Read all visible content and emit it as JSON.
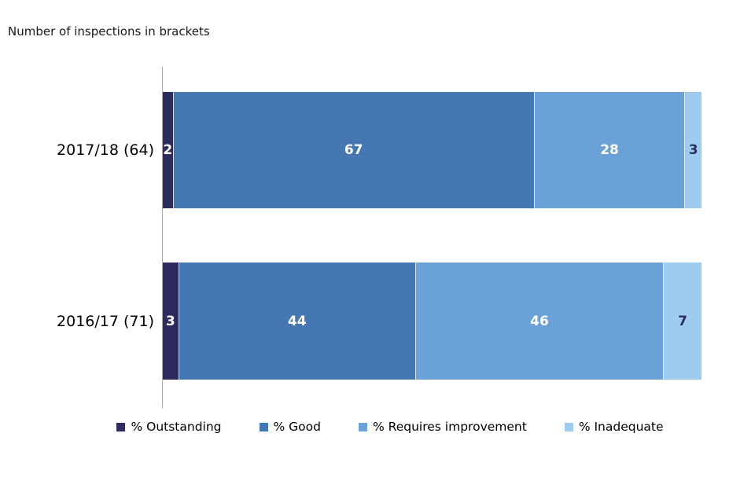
{
  "chart_data": {
    "type": "bar",
    "orientation": "horizontal",
    "stacked": true,
    "note": "Number of inspections in brackets",
    "categories": [
      "2017/18 (64)",
      "2016/17 (71)"
    ],
    "series": [
      {
        "name": "% Outstanding",
        "values": [
          2,
          3
        ],
        "color": "#2e2c5e",
        "value_label_color": "#ffffff"
      },
      {
        "name": "% Good",
        "values": [
          67,
          44
        ],
        "color": "#4577b3",
        "value_label_color": "#ffffff"
      },
      {
        "name": "% Requires improvement",
        "values": [
          28,
          46
        ],
        "color": "#6aa2d8",
        "value_label_color": "#ffffff"
      },
      {
        "name": "% Inadequate",
        "values": [
          3,
          7
        ],
        "color": "#9dccf0",
        "value_label_color": "#2e2c5e"
      }
    ],
    "xlim": [
      0,
      100
    ],
    "grid": false,
    "legend_position": "bottom"
  },
  "colors": {
    "axis": "#ababab",
    "background": "#ffffff"
  }
}
